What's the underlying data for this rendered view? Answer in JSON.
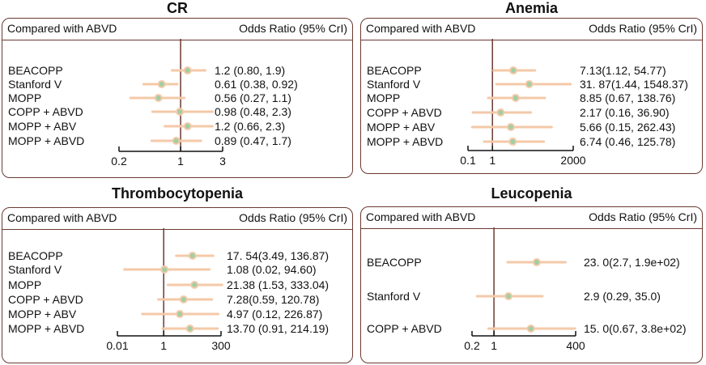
{
  "colors": {
    "border": "#6b3a32",
    "ci": "#f4c9a8",
    "point": "#9fcfa3",
    "axis": "#111111",
    "ref": "#6b3a32"
  },
  "chart_data": [
    {
      "type": "forest",
      "title": "CR",
      "header_left": "Compared with ABVD",
      "header_right": "Odds Ratio (95% CrI)",
      "scale": "log",
      "xlim": [
        0.2,
        3
      ],
      "ticks": [
        "0.2",
        "1",
        "3"
      ],
      "rows": [
        {
          "label": "BEACOPP",
          "or": 1.2,
          "low": 0.8,
          "high": 1.9,
          "text": "1.2 (0.80, 1.9)"
        },
        {
          "label": "Stanford V",
          "or": 0.61,
          "low": 0.38,
          "high": 0.92,
          "text": "0.61 (0.38, 0.92)"
        },
        {
          "label": "MOPP",
          "or": 0.56,
          "low": 0.27,
          "high": 1.1,
          "text": "0.56 (0.27, 1.1)"
        },
        {
          "label": "COPP + ABVD",
          "or": 0.98,
          "low": 0.48,
          "high": 2.3,
          "text": "0.98 (0.48, 2.3)"
        },
        {
          "label": "MOPP + ABV",
          "or": 1.2,
          "low": 0.66,
          "high": 2.3,
          "text": "1.2 (0.66, 2.3)"
        },
        {
          "label": "MOPP + ABVD",
          "or": 0.89,
          "low": 0.47,
          "high": 1.7,
          "text": "0.89 (0.47, 1.7)"
        }
      ]
    },
    {
      "type": "forest",
      "title": "Anemia",
      "header_left": "Compared with ABVD",
      "header_right": "Odds Ratio (95% CrI)",
      "scale": "log",
      "xlim": [
        0.1,
        2000
      ],
      "ticks": [
        "0.1",
        "1",
        "2000"
      ],
      "rows": [
        {
          "label": "BEACOPP",
          "or": 7.13,
          "low": 1.12,
          "high": 54.77,
          "text": "7.13(1.12, 54.77)"
        },
        {
          "label": "Stanford V",
          "or": 31.87,
          "low": 1.44,
          "high": 1548.37,
          "text": "31. 87(1.44, 1548.37)"
        },
        {
          "label": "MOPP",
          "or": 8.85,
          "low": 0.67,
          "high": 138.76,
          "text": "8.85 (0.67, 138.76)"
        },
        {
          "label": "COPP + ABVD",
          "or": 2.17,
          "low": 0.16,
          "high": 36.9,
          "text": "2.17 (0.16, 36.90)"
        },
        {
          "label": "MOPP + ABV",
          "or": 5.66,
          "low": 0.15,
          "high": 262.43,
          "text": "5.66 (0.15, 262.43)"
        },
        {
          "label": "MOPP + ABVD",
          "or": 6.74,
          "low": 0.46,
          "high": 125.78,
          "text": "6.74 (0.46, 125.78)"
        }
      ]
    },
    {
      "type": "forest",
      "title": "Thrombocytopenia",
      "header_left": "Compared with ABVD",
      "header_right": "Odds Ratio (95% CrI)",
      "scale": "log",
      "xlim": [
        0.01,
        300
      ],
      "ticks": [
        "0.01",
        "1",
        "300"
      ],
      "rows": [
        {
          "label": "BEACOPP",
          "or": 17.54,
          "low": 3.49,
          "high": 136.87,
          "text": "17. 54(3.49, 136.87)"
        },
        {
          "label": "Stanford V",
          "or": 1.08,
          "low": 0.02,
          "high": 94.6,
          "text": "1.08 (0.02, 94.60)"
        },
        {
          "label": "MOPP",
          "or": 21.38,
          "low": 1.53,
          "high": 333.04,
          "text": "21.38 (1.53, 333.04)"
        },
        {
          "label": "COPP + ABVD",
          "or": 7.28,
          "low": 0.59,
          "high": 120.78,
          "text": "7.28(0.59, 120.78)"
        },
        {
          "label": "MOPP + ABV",
          "or": 4.97,
          "low": 0.12,
          "high": 226.87,
          "text": "4.97 (0.12, 226.87)"
        },
        {
          "label": "MOPP + ABVD",
          "or": 13.7,
          "low": 0.91,
          "high": 214.19,
          "text": "13.70 (0.91, 214.19)"
        }
      ]
    },
    {
      "type": "forest",
      "title": "Leucopenia",
      "header_left": "Compared with ABVD",
      "header_right": "Odds Ratio (95% CrI)",
      "scale": "log",
      "xlim": [
        0.2,
        400
      ],
      "ticks": [
        "0.2",
        "1",
        "400"
      ],
      "rows": [
        {
          "label": "BEACOPP",
          "or": 23.0,
          "low": 2.7,
          "high": 190,
          "text": "23. 0(2.7, 1.9e+02)"
        },
        {
          "label": "Stanford V",
          "or": 2.9,
          "low": 0.29,
          "high": 35.0,
          "text": "2.9 (0.29, 35.0)"
        },
        {
          "label": "COPP + ABVD",
          "or": 15.0,
          "low": 0.67,
          "high": 380,
          "text": "15. 0(0.67, 3.8e+02)"
        }
      ]
    }
  ]
}
